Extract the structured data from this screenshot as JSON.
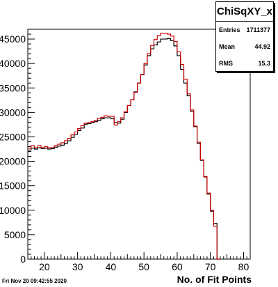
{
  "chart_data": {
    "type": "line",
    "title": "",
    "xlabel": "No. of Fit Points",
    "ylabel": "",
    "xlim": [
      15,
      82
    ],
    "ylim": [
      0,
      47000
    ],
    "x_ticks": [
      20,
      30,
      40,
      50,
      60,
      70,
      80
    ],
    "y_ticks": [
      0,
      5000,
      10000,
      15000,
      20000,
      25000,
      30000,
      35000,
      40000,
      45000
    ],
    "grid": false,
    "x": [
      15,
      16,
      17,
      18,
      19,
      20,
      21,
      22,
      23,
      24,
      25,
      26,
      27,
      28,
      29,
      30,
      31,
      32,
      33,
      34,
      35,
      36,
      37,
      38,
      39,
      40,
      41,
      42,
      43,
      44,
      45,
      46,
      47,
      48,
      49,
      50,
      51,
      52,
      53,
      54,
      55,
      56,
      57,
      58,
      59,
      60,
      61,
      62,
      63,
      64,
      65,
      66,
      67,
      68,
      69,
      70,
      71,
      72
    ],
    "series": [
      {
        "color": "#000000",
        "values": [
          22300,
          22700,
          22500,
          22800,
          22600,
          22700,
          22500,
          22600,
          22900,
          23100,
          23300,
          23700,
          24200,
          24900,
          25500,
          26300,
          26800,
          27600,
          27700,
          27900,
          28100,
          28400,
          28700,
          28900,
          28900,
          28700,
          27900,
          27800,
          28600,
          30000,
          31400,
          32600,
          34200,
          36000,
          37700,
          39700,
          41600,
          43000,
          43800,
          44400,
          45000,
          45000,
          45100,
          44700,
          43600,
          41600,
          38800,
          36000,
          33400,
          30200,
          27100,
          23700,
          20200,
          16800,
          13300,
          9800,
          7300,
          0
        ]
      },
      {
        "color": "#cc0000",
        "values": [
          22700,
          23200,
          22800,
          23200,
          22800,
          23000,
          22800,
          22800,
          23200,
          23500,
          23800,
          24200,
          24700,
          25400,
          26000,
          26700,
          27300,
          27800,
          27900,
          28100,
          28400,
          28800,
          29000,
          29300,
          29200,
          29200,
          27400,
          28100,
          28900,
          30100,
          31400,
          32600,
          34100,
          36000,
          37800,
          40000,
          42000,
          43700,
          44900,
          45700,
          46200,
          46200,
          46000,
          45600,
          44500,
          42400,
          39800,
          36800,
          33800,
          30500,
          27200,
          23900,
          20300,
          16900,
          13500,
          10000,
          6700,
          0
        ]
      }
    ]
  },
  "stats_box": {
    "title": "ChiSqXY_x",
    "rows": [
      {
        "label": "Entries",
        "value": "1711377"
      },
      {
        "label": "Mean",
        "value": "44.92"
      },
      {
        "label": "RMS",
        "value": "15.3"
      }
    ]
  },
  "footer": {
    "timestamp": "Fri Nov 20 09:42:55 2020"
  }
}
